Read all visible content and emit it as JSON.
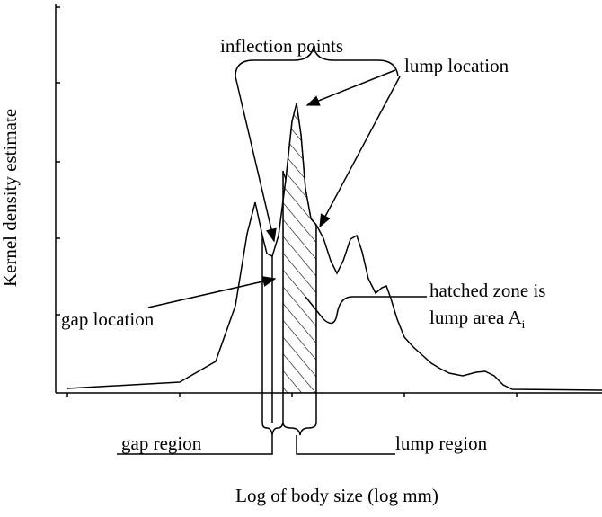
{
  "y_axis_label": "Kernel density estimate",
  "x_axis_label": "Log of body size (log mm)",
  "annotations": {
    "inflection_points": "inflection points",
    "lump_location": "lump location",
    "gap_location": "gap location",
    "hatched_zone_line1": "hatched zone is",
    "hatched_zone_line2": "lump area A",
    "hatched_zone_subscript": "i",
    "gap_region": "gap region",
    "lump_region": "lump region"
  }
}
